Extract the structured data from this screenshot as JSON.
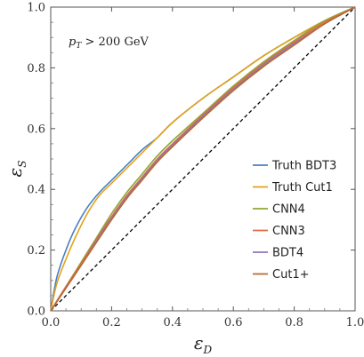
{
  "chart_data": {
    "type": "line",
    "xlabel": "ε",
    "xlabel_sub": "D",
    "ylabel": "ε",
    "ylabel_sub": "S",
    "annotation": "p",
    "annotation_sub": "T",
    "annotation_rest": " > 200 GeV",
    "xlim": [
      0,
      1
    ],
    "ylim": [
      0,
      1
    ],
    "xticks": [
      "0.0",
      "0.2",
      "0.4",
      "0.6",
      "0.8",
      "1.0"
    ],
    "yticks": [
      "0.0",
      "0.2",
      "0.4",
      "0.6",
      "0.8",
      "1.0"
    ],
    "grid": false,
    "legend_position": "right",
    "series": [
      {
        "name": "Truth BDT3",
        "color": "#4a7fc1",
        "x": [
          0,
          0.02,
          0.05,
          0.08,
          0.12,
          0.16,
          0.2,
          0.25,
          0.3,
          0.35,
          0.4,
          0.5,
          0.6,
          0.7,
          0.8,
          0.9,
          1.0
        ],
        "y": [
          0,
          0.11,
          0.2,
          0.27,
          0.34,
          0.39,
          0.43,
          0.48,
          0.53,
          0.57,
          0.62,
          0.7,
          0.77,
          0.84,
          0.9,
          0.955,
          1.0
        ]
      },
      {
        "name": "Truth Cut1",
        "color": "#e3a21a",
        "x": [
          0,
          0.02,
          0.05,
          0.08,
          0.12,
          0.16,
          0.2,
          0.25,
          0.3,
          0.35,
          0.4,
          0.5,
          0.6,
          0.7,
          0.8,
          0.9,
          1.0
        ],
        "y": [
          0,
          0.09,
          0.17,
          0.24,
          0.32,
          0.38,
          0.42,
          0.47,
          0.52,
          0.57,
          0.62,
          0.7,
          0.77,
          0.84,
          0.9,
          0.955,
          1.0
        ]
      },
      {
        "name": "CNN4",
        "color": "#8ea832",
        "x": [
          0,
          0.05,
          0.1,
          0.15,
          0.2,
          0.25,
          0.3,
          0.35,
          0.4,
          0.5,
          0.6,
          0.7,
          0.8,
          0.9,
          1.0
        ],
        "y": [
          0,
          0.08,
          0.16,
          0.24,
          0.32,
          0.39,
          0.45,
          0.51,
          0.56,
          0.65,
          0.74,
          0.82,
          0.89,
          0.955,
          1.0
        ]
      },
      {
        "name": "CNN3",
        "color": "#e06b3f",
        "x": [
          0,
          0.05,
          0.1,
          0.15,
          0.2,
          0.25,
          0.3,
          0.35,
          0.4,
          0.5,
          0.6,
          0.7,
          0.8,
          0.9,
          1.0
        ],
        "y": [
          0,
          0.08,
          0.155,
          0.235,
          0.31,
          0.38,
          0.44,
          0.5,
          0.55,
          0.645,
          0.735,
          0.815,
          0.885,
          0.95,
          1.0
        ]
      },
      {
        "name": "BDT4",
        "color": "#8f75b8",
        "x": [
          0,
          0.05,
          0.1,
          0.15,
          0.2,
          0.25,
          0.3,
          0.35,
          0.4,
          0.5,
          0.6,
          0.7,
          0.8,
          0.9,
          1.0
        ],
        "y": [
          0,
          0.075,
          0.15,
          0.23,
          0.305,
          0.375,
          0.435,
          0.495,
          0.545,
          0.64,
          0.73,
          0.81,
          0.88,
          0.945,
          1.0
        ]
      },
      {
        "name": "Cut1+",
        "color": "#b9692f",
        "x": [
          0,
          0.05,
          0.1,
          0.15,
          0.2,
          0.25,
          0.3,
          0.35,
          0.4,
          0.5,
          0.6,
          0.7,
          0.8,
          0.9,
          1.0
        ],
        "y": [
          0,
          0.075,
          0.15,
          0.225,
          0.3,
          0.37,
          0.43,
          0.49,
          0.54,
          0.635,
          0.725,
          0.805,
          0.875,
          0.945,
          1.0
        ]
      }
    ],
    "reference_line": {
      "style": "dashed",
      "color": "#000000",
      "x": [
        0,
        1
      ],
      "y": [
        0,
        1
      ]
    }
  }
}
